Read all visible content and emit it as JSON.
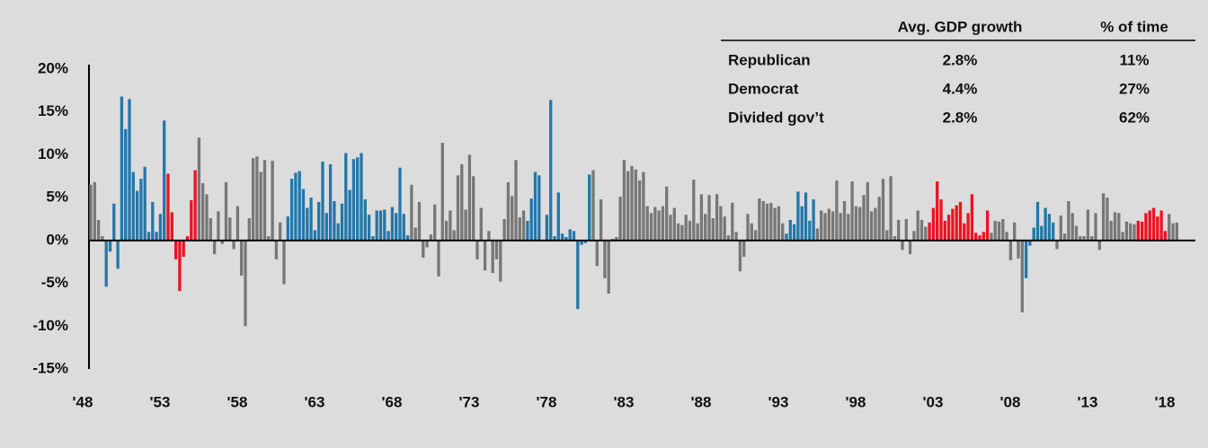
{
  "chart_data": {
    "type": "bar",
    "categories": [
      "'48",
      null,
      null,
      null,
      null,
      null,
      null,
      null,
      null,
      null,
      null,
      null,
      null,
      null,
      null,
      null,
      null,
      null,
      null,
      null,
      "'53",
      null,
      null,
      null,
      null,
      null,
      null,
      null,
      null,
      null,
      null,
      null,
      null,
      null,
      null,
      null,
      null,
      null,
      null,
      null,
      "'58",
      null,
      null,
      null,
      null,
      null,
      null,
      null,
      null,
      null,
      null,
      null,
      null,
      null,
      null,
      null,
      null,
      null,
      null,
      null,
      "'63",
      null,
      null,
      null,
      null,
      null,
      null,
      null,
      null,
      null,
      null,
      null,
      null,
      null,
      null,
      null,
      null,
      null,
      null,
      null,
      "'68",
      null,
      null,
      null,
      null,
      null,
      null,
      null,
      null,
      null,
      null,
      null,
      null,
      null,
      null,
      null,
      null,
      null,
      null,
      null,
      "'73",
      null,
      null,
      null,
      null,
      null,
      null,
      null,
      null,
      null,
      null,
      null,
      null,
      null,
      null,
      null,
      null,
      null,
      null,
      null,
      "'78",
      null,
      null,
      null,
      null,
      null,
      null,
      null,
      null,
      null,
      null,
      null,
      null,
      null,
      null,
      null,
      null,
      null,
      null,
      null,
      "'83",
      null,
      null,
      null,
      null,
      null,
      null,
      null,
      null,
      null,
      null,
      null,
      null,
      null,
      null,
      null,
      null,
      null,
      null,
      null,
      "'88",
      null,
      null,
      null,
      null,
      null,
      null,
      null,
      null,
      null,
      null,
      null,
      null,
      null,
      null,
      null,
      null,
      null,
      null,
      null,
      "'93",
      null,
      null,
      null,
      null,
      null,
      null,
      null,
      null,
      null,
      null,
      null,
      null,
      null,
      null,
      null,
      null,
      null,
      null,
      null,
      "'98",
      null,
      null,
      null,
      null,
      null,
      null,
      null,
      null,
      null,
      null,
      null,
      null,
      null,
      null,
      null,
      null,
      null,
      null,
      null,
      "'03",
      null,
      null,
      null,
      null,
      null,
      null,
      null,
      null,
      null,
      null,
      null,
      null,
      null,
      null,
      null,
      null,
      null,
      null,
      null,
      "'08",
      null,
      null,
      null,
      null,
      null,
      null,
      null,
      null,
      null,
      null,
      null,
      null,
      null,
      null,
      null,
      null,
      null,
      null,
      null,
      "'13",
      null,
      null,
      null,
      null,
      null,
      null,
      null,
      null,
      null,
      null,
      null,
      null,
      null,
      null,
      null,
      null,
      null,
      null,
      null,
      "'18",
      null
    ],
    "values": [
      6.5,
      6.8,
      2.4,
      0.5,
      -5.4,
      -1.3,
      4.3,
      -3.3,
      16.8,
      13.0,
      16.5,
      8.0,
      5.8,
      7.2,
      8.6,
      1.0,
      4.5,
      1.0,
      3.1,
      14.0,
      7.8,
      3.3,
      -2.2,
      -5.9,
      -1.9,
      0.5,
      4.7,
      8.2,
      12.0,
      6.7,
      5.4,
      2.6,
      -1.6,
      3.4,
      -0.4,
      6.8,
      2.7,
      -1.0,
      4.0,
      -4.1,
      -10.0,
      2.6,
      9.6,
      9.8,
      8.0,
      9.4,
      0.5,
      9.3,
      -2.2,
      2.1,
      -5.1,
      2.8,
      7.2,
      7.9,
      8.1,
      6.0,
      3.8,
      5.0,
      1.2,
      4.5,
      9.2,
      3.2,
      8.9,
      4.6,
      2.0,
      4.3,
      10.2,
      5.9,
      9.5,
      9.7,
      10.2,
      4.8,
      3.0,
      0.5,
      3.5,
      3.5,
      3.6,
      1.1,
      3.9,
      3.2,
      8.5,
      3.1,
      0.6,
      6.5,
      1.5,
      4.5,
      -2.0,
      -0.8,
      0.7,
      4.2,
      -4.2,
      11.4,
      2.3,
      3.5,
      1.2,
      7.6,
      8.9,
      3.6,
      10.0,
      7.5,
      -2.2,
      3.8,
      -3.5,
      1.1,
      -3.8,
      -2.2,
      -4.8,
      2.5,
      6.8,
      5.2,
      9.4,
      2.7,
      3.5,
      2.3,
      4.9,
      8.0,
      7.6,
      0.1,
      3.0,
      16.4,
      0.5,
      5.6,
      0.8,
      0.4,
      1.3,
      1.1,
      -8.0,
      -0.5,
      -0.3,
      7.7,
      8.2,
      -3.0,
      4.8,
      -4.4,
      -6.2,
      0.2,
      0.4,
      5.1,
      9.4,
      8.1,
      8.7,
      8.3,
      7.0,
      8.0,
      4.0,
      3.2,
      3.9,
      3.5,
      4.0,
      6.3,
      3.0,
      3.8,
      2.0,
      1.8,
      3.0,
      2.3,
      7.1,
      2.0,
      5.4,
      3.1,
      5.3,
      2.6,
      5.4,
      4.0,
      2.8,
      0.6,
      4.4,
      1.0,
      -3.6,
      -1.9,
      3.1,
      2.0,
      1.2,
      4.9,
      4.6,
      4.3,
      4.4,
      3.8,
      4.0,
      2.0,
      0.8,
      2.4,
      1.9,
      5.7,
      4.0,
      5.6,
      2.3,
      4.8,
      1.4,
      3.5,
      3.2,
      3.7,
      3.4,
      7.0,
      3.2,
      4.6,
      3.1,
      6.9,
      4.0,
      3.9,
      5.3,
      6.8,
      3.4,
      3.8,
      5.1,
      7.2,
      1.2,
      7.5,
      0.5,
      2.4,
      -1.1,
      2.5,
      -1.6,
      1.1,
      3.5,
      2.4,
      1.6,
      2.1,
      3.8,
      6.9,
      4.8,
      2.3,
      3.0,
      3.7,
      4.1,
      4.5,
      2.0,
      3.2,
      5.4,
      0.9,
      0.6,
      1.0,
      3.5,
      0.9,
      2.3,
      2.2,
      2.5,
      1.0,
      -2.3,
      2.1,
      -2.1,
      -8.4,
      -4.4,
      -0.6,
      1.5,
      4.5,
      1.7,
      3.8,
      3.1,
      2.1,
      -1.0,
      2.9,
      0.8,
      4.6,
      3.2,
      1.7,
      0.5,
      0.5,
      3.6,
      0.5,
      3.2,
      -1.1,
      5.5,
      5.0,
      2.3,
      3.3,
      3.2,
      1.0,
      2.2,
      2.0,
      1.9,
      2.3,
      2.2,
      3.2,
      3.5,
      3.8,
      2.8,
      3.5,
      1.1,
      3.1,
      2.0,
      2.1
    ],
    "colors": [
      "#777",
      "#777",
      "#777",
      "#777",
      "#27a",
      "#27a",
      "#27a",
      "#27a",
      "#27a",
      "#27a",
      "#27a",
      "#27a",
      "#27a",
      "#27a",
      "#27a",
      "#27a",
      "#27a",
      "#27a",
      "#27a",
      "#27a",
      "#e12",
      "#e12",
      "#e12",
      "#e12",
      "#e12",
      "#e12",
      "#e12",
      "#e12",
      "#777",
      "#777",
      "#777",
      "#777",
      "#777",
      "#777",
      "#777",
      "#777",
      "#777",
      "#777",
      "#777",
      "#777",
      "#777",
      "#777",
      "#777",
      "#777",
      "#777",
      "#777",
      "#777",
      "#777",
      "#777",
      "#777",
      "#777",
      "#27a",
      "#27a",
      "#27a",
      "#27a",
      "#27a",
      "#27a",
      "#27a",
      "#27a",
      "#27a",
      "#27a",
      "#27a",
      "#27a",
      "#27a",
      "#27a",
      "#27a",
      "#27a",
      "#27a",
      "#27a",
      "#27a",
      "#27a",
      "#27a",
      "#27a",
      "#27a",
      "#27a",
      "#27a",
      "#27a",
      "#27a",
      "#27a",
      "#27a",
      "#27a",
      "#27a",
      "#27a",
      "#777",
      "#777",
      "#777",
      "#777",
      "#777",
      "#777",
      "#777",
      "#777",
      "#777",
      "#777",
      "#777",
      "#777",
      "#777",
      "#777",
      "#777",
      "#777",
      "#777",
      "#777",
      "#777",
      "#777",
      "#777",
      "#777",
      "#777",
      "#777",
      "#777",
      "#777",
      "#777",
      "#777",
      "#777",
      "#777",
      "#27a",
      "#27a",
      "#27a",
      "#27a",
      "#27a",
      "#27a",
      "#27a",
      "#27a",
      "#27a",
      "#27a",
      "#27a",
      "#27a",
      "#27a",
      "#27a",
      "#27a",
      "#27a",
      "#27a",
      "#777",
      "#777",
      "#777",
      "#777",
      "#777",
      "#777",
      "#777",
      "#777",
      "#777",
      "#777",
      "#777",
      "#777",
      "#777",
      "#777",
      "#777",
      "#777",
      "#777",
      "#777",
      "#777",
      "#777",
      "#777",
      "#777",
      "#777",
      "#777",
      "#777",
      "#777",
      "#777",
      "#777",
      "#777",
      "#777",
      "#777",
      "#777",
      "#777",
      "#777",
      "#777",
      "#777",
      "#777",
      "#777",
      "#777",
      "#777",
      "#777",
      "#777",
      "#777",
      "#777",
      "#777",
      "#777",
      "#777",
      "#777",
      "#777",
      "#777",
      "#27a",
      "#27a",
      "#27a",
      "#27a",
      "#27a",
      "#27a",
      "#27a",
      "#27a",
      "#777",
      "#777",
      "#777",
      "#777",
      "#777",
      "#777",
      "#777",
      "#777",
      "#777",
      "#777",
      "#777",
      "#777",
      "#777",
      "#777",
      "#777",
      "#777",
      "#777",
      "#777",
      "#777",
      "#777",
      "#777",
      "#777",
      "#777",
      "#777",
      "#777",
      "#777",
      "#777",
      "#777",
      "#777",
      "#e12",
      "#e12",
      "#e12",
      "#e12",
      "#e12",
      "#e12",
      "#e12",
      "#e12",
      "#e12",
      "#e12",
      "#e12",
      "#e12",
      "#e12",
      "#e12",
      "#e12",
      "#e12",
      "#777",
      "#777",
      "#777",
      "#777",
      "#777",
      "#777",
      "#777",
      "#777",
      "#777",
      "#27a",
      "#27a",
      "#27a",
      "#27a",
      "#27a",
      "#27a",
      "#27a",
      "#27a",
      "#777",
      "#777",
      "#777",
      "#777",
      "#777",
      "#777",
      "#777",
      "#777",
      "#777",
      "#777",
      "#777",
      "#777",
      "#777",
      "#777",
      "#777",
      "#777",
      "#777",
      "#777",
      "#777",
      "#777",
      "#777",
      "#e12",
      "#e12",
      "#e12",
      "#e12",
      "#e12",
      "#e12",
      "#e12",
      "#e12",
      "#777",
      "#777",
      "#777"
    ],
    "ylim": [
      -15,
      20
    ],
    "yticks": [
      {
        "value": -15,
        "label": "-15%"
      },
      {
        "value": -10,
        "label": "-10%"
      },
      {
        "value": -5,
        "label": "-5%"
      },
      {
        "value": 0,
        "label": "0%"
      },
      {
        "value": 5,
        "label": "5%"
      },
      {
        "value": 10,
        "label": "10%"
      },
      {
        "value": 15,
        "label": "15%"
      },
      {
        "value": 20,
        "label": "20%"
      }
    ],
    "grid": false,
    "table": {
      "columns": [
        "Avg. GDP growth",
        "% of time"
      ],
      "rows": [
        {
          "name": "Republican",
          "color": "#e12",
          "cells": [
            "2.8%",
            "11%"
          ]
        },
        {
          "name": "Democrat",
          "color": "#27a",
          "cells": [
            "4.4%",
            "27%"
          ]
        },
        {
          "name": "Divided gov’t",
          "color": "#777",
          "cells": [
            "2.8%",
            "62%"
          ]
        }
      ]
    }
  }
}
